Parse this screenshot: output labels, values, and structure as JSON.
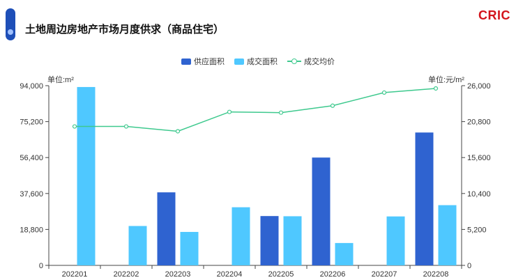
{
  "header": {
    "title": "土地周边房地产市场月度供求（商品住宅）",
    "brand": "CRIC"
  },
  "colors": {
    "supply": "#2f63d0",
    "deal": "#4fc8ff",
    "price": "#3ec98e",
    "axis": "#444444",
    "grid": "#e6e6e6"
  },
  "chart_data": {
    "type": "bar",
    "categories": [
      "202201",
      "202202",
      "202203",
      "202204",
      "202205",
      "202206",
      "202207",
      "202208"
    ],
    "series": [
      {
        "name": "供应面积",
        "type": "bar",
        "axis": "left",
        "values": [
          0,
          0,
          38200,
          0,
          25800,
          56400,
          0,
          69500
        ]
      },
      {
        "name": "成交面积",
        "type": "bar",
        "axis": "left",
        "values": [
          93300,
          20600,
          17500,
          30400,
          25700,
          11700,
          25600,
          31500
        ]
      },
      {
        "name": "成交均价",
        "type": "line",
        "axis": "right",
        "values": [
          20100,
          20100,
          19400,
          22200,
          22100,
          23100,
          25000,
          25600
        ]
      }
    ],
    "y_left": {
      "label": "单位:m²",
      "min": 0,
      "max": 94000,
      "ticks": [
        "0",
        "18,800",
        "37,600",
        "56,400",
        "75,200",
        "94,000"
      ]
    },
    "y_right": {
      "label": "单位:元/m²",
      "min": 0,
      "max": 26000,
      "ticks": [
        "0",
        "5,200",
        "10,400",
        "15,600",
        "20,800",
        "26,000"
      ]
    },
    "legend_position": "top-center",
    "grid": false
  }
}
